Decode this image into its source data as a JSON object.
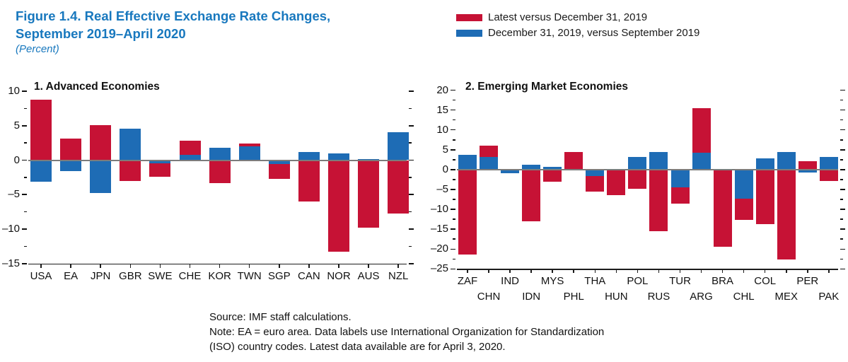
{
  "title": {
    "line1": "Figure 1.4. Real Effective Exchange Rate Changes,",
    "line2": "September 2019–April 2020",
    "subtitle": "(Percent)"
  },
  "colors": {
    "red": "#C61235",
    "blue": "#1E6CB5",
    "title_blue": "#1878BE",
    "zero_line": "#7C7C7C",
    "axis": "#1C1C1C"
  },
  "legend": {
    "items": [
      {
        "label": "Latest versus December 31, 2019",
        "color_key": "red"
      },
      {
        "label": "December 31, 2019, versus September 2019",
        "color_key": "blue"
      }
    ]
  },
  "chart_data": [
    {
      "type": "bar",
      "title": "1. Advanced Economies",
      "categories": [
        "USA",
        "EA",
        "JPN",
        "GBR",
        "SWE",
        "CHE",
        "KOR",
        "TWN",
        "SGP",
        "CAN",
        "NOR",
        "AUS",
        "NZL"
      ],
      "series": [
        {
          "name": "Latest versus December 31, 2019",
          "color_key": "red",
          "values": [
            8.8,
            3.1,
            5.1,
            -3.0,
            -2.4,
            2.8,
            -3.3,
            2.4,
            -2.7,
            -6.0,
            -13.3,
            -9.8,
            -7.7
          ]
        },
        {
          "name": "December 31, 2019, versus September 2019",
          "color_key": "blue",
          "values": [
            -3.1,
            -1.6,
            -4.8,
            4.6,
            -0.5,
            0.8,
            1.8,
            2.0,
            -0.6,
            1.2,
            1.0,
            0.2,
            4.1
          ]
        }
      ],
      "ylabel": "Percent",
      "ylim": [
        -15,
        10
      ],
      "y_ticks": [
        10,
        5,
        0,
        -5,
        -10,
        -15
      ],
      "minor_tick_step": 2.5,
      "grid": false,
      "legend_position": "top-right-of-figure",
      "label_rows": 1
    },
    {
      "type": "bar",
      "title": "2. Emerging Market Economies",
      "categories": [
        "ZAF",
        "CHN",
        "IND",
        "IDN",
        "MYS",
        "PHL",
        "THA",
        "HUN",
        "POL",
        "RUS",
        "TUR",
        "ARG",
        "BRA",
        "CHL",
        "COL",
        "MEX",
        "PER",
        "PAK"
      ],
      "series": [
        {
          "name": "Latest versus December 31, 2019",
          "color_key": "red",
          "values": [
            -21.3,
            6.0,
            -0.3,
            -13.0,
            -3.1,
            4.5,
            -5.6,
            -6.5,
            -4.8,
            -15.5,
            -8.6,
            15.5,
            -19.5,
            -12.7,
            -13.7,
            -22.6,
            2.1,
            -2.9
          ]
        },
        {
          "name": "December 31, 2019, versus September 2019",
          "color_key": "blue",
          "values": [
            3.8,
            3.1,
            -0.9,
            1.2,
            0.7,
            0,
            -1.7,
            0,
            3.1,
            4.5,
            -4.4,
            4.3,
            0,
            -7.4,
            2.9,
            4.5,
            -0.8,
            3.1
          ]
        }
      ],
      "ylabel": "Percent",
      "ylim": [
        -25,
        20
      ],
      "y_ticks": [
        20,
        15,
        10,
        5,
        0,
        -5,
        -10,
        -15,
        -20,
        -25
      ],
      "minor_tick_step": 2.5,
      "grid": false,
      "legend_position": "top-right-of-figure",
      "label_rows": 2
    }
  ],
  "footer": {
    "line1": "Source: IMF staff calculations.",
    "line2": "Note: EA = euro area. Data labels use International Organization for Standardization",
    "line3": "(ISO) country codes. Latest data available are for April 3, 2020."
  }
}
